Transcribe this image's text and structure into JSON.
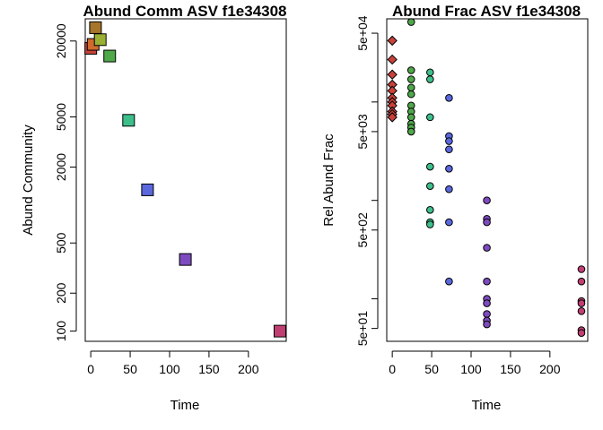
{
  "chart_data": [
    {
      "type": "scatter",
      "title": "Abund Comm ASV f1e34308",
      "xlabel": "Time",
      "ylabel": "Abund Community",
      "y_scale": "log",
      "xlim": [
        -7,
        248
      ],
      "ylim": [
        83,
        30000
      ],
      "x_ticks": [
        0,
        50,
        100,
        150,
        200
      ],
      "y_ticks": [
        100,
        200,
        500,
        2000,
        5000,
        20000
      ],
      "marker": "square",
      "points": [
        {
          "x": 0,
          "y": 17500,
          "color": "#c8413a"
        },
        {
          "x": 3,
          "y": 18800,
          "color": "#d06a2e"
        },
        {
          "x": 6,
          "y": 25500,
          "color": "#a6762a"
        },
        {
          "x": 12,
          "y": 20500,
          "color": "#9ab032"
        },
        {
          "x": 24,
          "y": 15200,
          "color": "#4fa84a"
        },
        {
          "x": 48,
          "y": 4700,
          "color": "#3dbf8c"
        },
        {
          "x": 72,
          "y": 1320,
          "color": "#5a68dd"
        },
        {
          "x": 120,
          "y": 370,
          "color": "#7d4bbf"
        },
        {
          "x": 240,
          "y": 100,
          "color": "#c03f72"
        }
      ]
    },
    {
      "type": "scatter",
      "title": "Abund Frac ASV f1e34308",
      "xlabel": "Time",
      "ylabel": "Rel Abund Frac",
      "y_scale": "log",
      "xlim": [
        -7,
        248
      ],
      "ylim": [
        37,
        70000
      ],
      "x_ticks": [
        0,
        50,
        100,
        150,
        200
      ],
      "y_ticks": [
        "5e+01",
        "5e+02",
        "5e+03",
        "5e+04"
      ],
      "series": [
        {
          "x": 0,
          "marker": "diamond",
          "color": "#c8413a",
          "values": [
            42000,
            27000,
            19000,
            15000,
            13000,
            11000,
            10000,
            9200,
            8000,
            7500,
            7000
          ]
        },
        {
          "x": 24,
          "marker": "circle",
          "color": "#4fa84a",
          "values": [
            65000,
            21000,
            17000,
            14000,
            12000,
            9200,
            8000,
            7000,
            6000,
            5500,
            5000
          ]
        },
        {
          "x": 48,
          "marker": "circle",
          "color": "#3dbf8c",
          "values": [
            20000,
            17000,
            7000,
            2200,
            1400,
            800,
            600,
            570
          ]
        },
        {
          "x": 72,
          "marker": "circle",
          "color": "#5a68dd",
          "values": [
            11000,
            4500,
            4000,
            3300,
            2100,
            1300,
            600,
            150
          ]
        },
        {
          "x": 120,
          "marker": "circle",
          "color": "#7d4bbf",
          "values": [
            1000,
            650,
            600,
            330,
            150,
            100,
            90,
            70,
            60,
            55
          ]
        },
        {
          "x": 240,
          "marker": "circle",
          "color": "#c03f72",
          "values": [
            200,
            150,
            95,
            90,
            75,
            48,
            45
          ]
        }
      ]
    }
  ]
}
